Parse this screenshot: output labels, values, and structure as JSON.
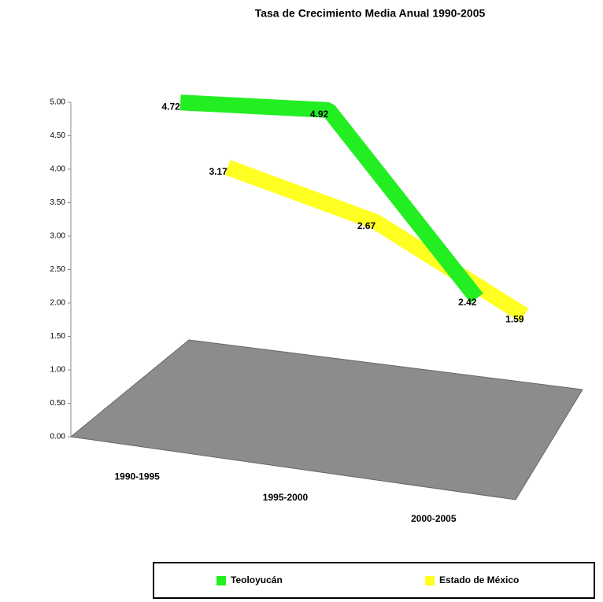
{
  "chart_data": {
    "type": "line3d",
    "title": "Tasa de Crecimiento Media Anual 1990-2005",
    "categories": [
      "1990-1995",
      "1995-2000",
      "2000-2005"
    ],
    "series": [
      {
        "name": "Teoloyucán",
        "color": "#22ee22",
        "values": [
          4.72,
          4.92,
          2.42
        ]
      },
      {
        "name": "Estado de México",
        "color": "#ffff22",
        "values": [
          3.17,
          2.67,
          1.59
        ]
      }
    ],
    "ylim": [
      0,
      5
    ],
    "yticks": [
      {
        "value": 0,
        "label": "0.00"
      },
      {
        "value": 0.5,
        "label": "0.50"
      },
      {
        "value": 1,
        "label": "1.00"
      },
      {
        "value": 1.5,
        "label": "1.50"
      },
      {
        "value": 2,
        "label": "2.00"
      },
      {
        "value": 2.5,
        "label": "2.50"
      },
      {
        "value": 3,
        "label": "3.00"
      },
      {
        "value": 3.5,
        "label": "3.50"
      },
      {
        "value": 4,
        "label": "4.00"
      },
      {
        "value": 4.5,
        "label": "4.50"
      },
      {
        "value": 5,
        "label": "5.00"
      }
    ],
    "legend": "bottom"
  }
}
